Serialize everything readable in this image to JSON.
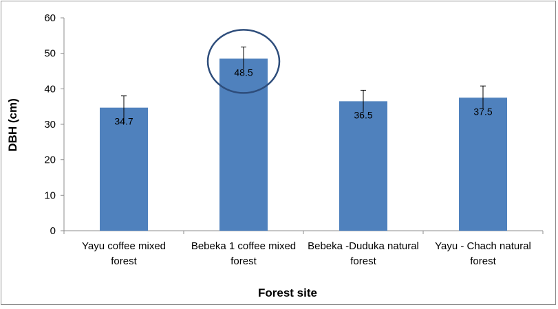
{
  "chart_data": {
    "type": "bar",
    "categories": [
      [
        "Yayu coffee mixed",
        "forest"
      ],
      [
        "Bebeka 1 coffee mixed",
        "forest"
      ],
      [
        "Bebeka -Duduka natural",
        "forest"
      ],
      [
        "Yayu - Chach natural",
        "forest"
      ]
    ],
    "values": [
      34.7,
      48.5,
      36.5,
      37.5
    ],
    "data_labels": [
      "34.7",
      "48.5",
      "36.5",
      "37.5"
    ],
    "error_bars": [
      [
        30.5,
        38.0
      ],
      [
        45.5,
        51.8
      ],
      [
        33.5,
        39.6
      ],
      [
        34.5,
        40.8
      ]
    ],
    "highlight_index": 1,
    "xlabel": "Forest site",
    "ylabel": "DBH (cm)",
    "ylim": [
      0,
      60
    ],
    "yticks": [
      0,
      10,
      20,
      30,
      40,
      50,
      60
    ],
    "grid": false,
    "bar_color": "#4f81bd",
    "highlight_color": "#2e4d7b"
  }
}
